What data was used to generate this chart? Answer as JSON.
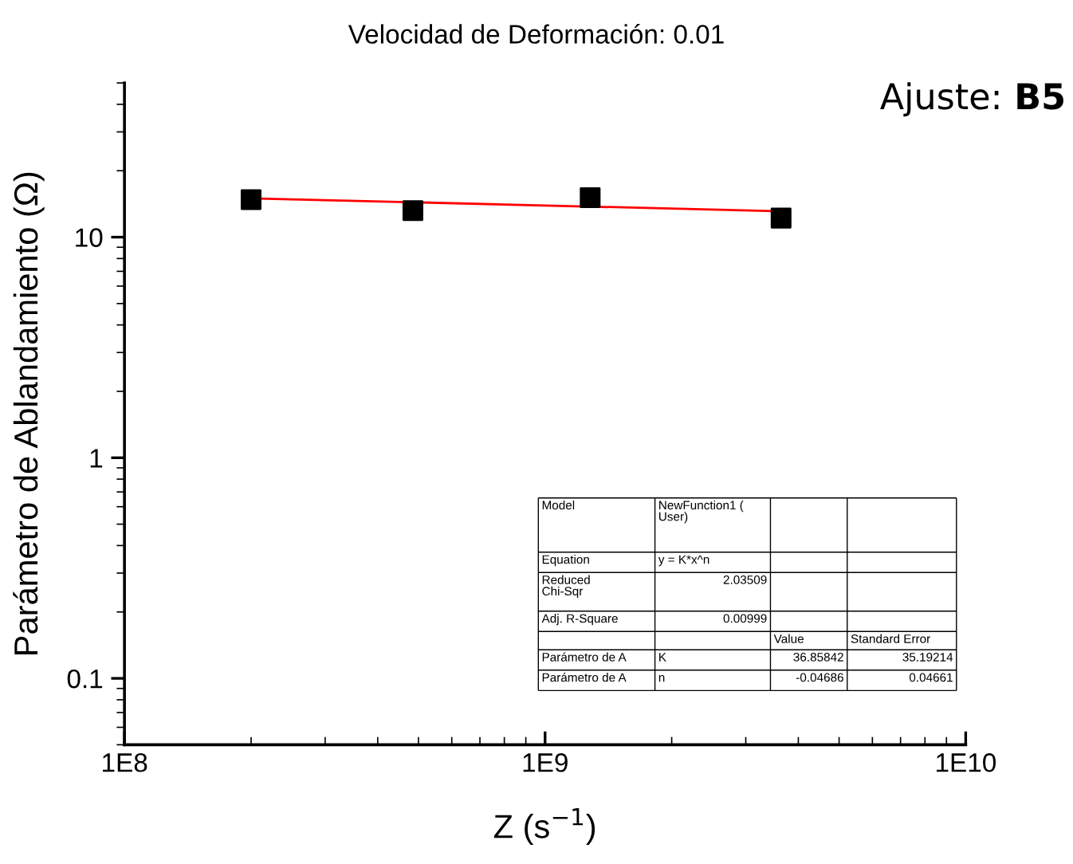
{
  "chart_data": {
    "type": "scatter",
    "title": "Velocidad de Deformación: 0.01",
    "xlabel": "Z (s$^{−1}$)",
    "ylabel": "Parámetro de Ablandamiento (Ω)",
    "x": [
      200000000.0,
      485000000.0,
      1280000000.0,
      3640000000.0
    ],
    "series": [
      {
        "color": "#000000",
        "marker": "square",
        "values": [
          14.8,
          13.2,
          15.1,
          12.2
        ]
      },
      {
        "type": "line",
        "color": "#ff0000",
        "line_style": "solid",
        "x": [
          200000000.0,
          3640000000.0
        ],
        "values": [
          15.0,
          13.1
        ]
      }
    ],
    "log": "xy",
    "xlim": [
      100000000.0,
      10000000000.0
    ],
    "xticks": [
      {
        "value": 100000000.0,
        "label": "1E8"
      },
      {
        "value": 1000000000.0,
        "label": "1E9"
      },
      {
        "value": 10000000000.0,
        "label": "1E10"
      }
    ],
    "ylim": [
      0.05,
      50
    ],
    "yticks": [
      0.1,
      1,
      10
    ],
    "grid": false,
    "annotations": [
      "Ajuste: B5",
      "Model",
      "NewFunction1 (\nUser)",
      "Equation",
      "y = K*x^n",
      "Reduced\nChi-Sqr",
      "2.03509",
      "Adj. R-Square",
      "0.00999",
      "Value",
      "Standard Error",
      "Parámetro de A",
      "K",
      "36.85842",
      "35.19214",
      "Parámetro de A",
      "n",
      "-0.04686",
      "0.04661"
    ]
  }
}
